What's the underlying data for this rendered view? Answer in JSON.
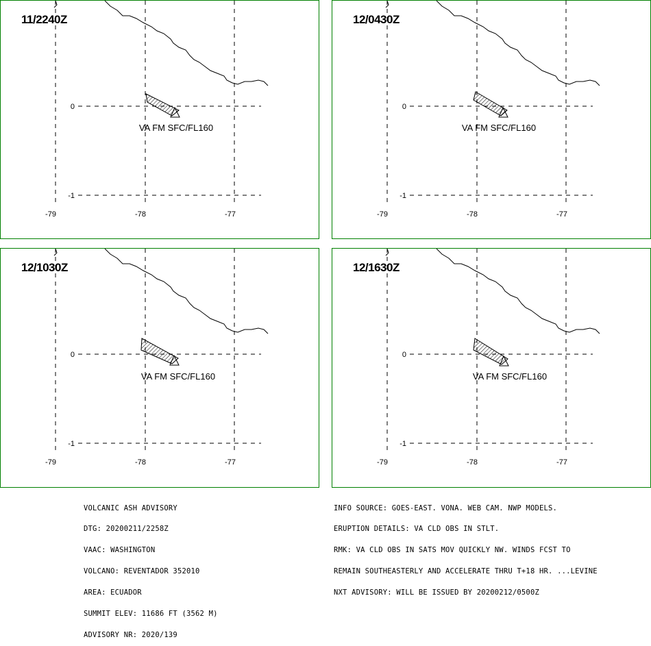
{
  "map": {
    "lat_labels": [
      "0",
      "-1"
    ],
    "lon_labels": [
      "-79",
      "-78",
      "-77"
    ],
    "cloud_label": "VA FM SFC/FL160",
    "colors": {
      "frame": "#008000",
      "lines": "#000000"
    }
  },
  "panels": [
    {
      "time": "11/2240Z"
    },
    {
      "time": "12/0430Z"
    },
    {
      "time": "12/1030Z"
    },
    {
      "time": "12/1630Z"
    }
  ],
  "advisory_left": [
    "VOLCANIC ASH ADVISORY",
    "DTG: 20200211/2258Z",
    "VAAC: WASHINGTON",
    "VOLCANO: REVENTADOR 352010",
    "AREA: ECUADOR",
    "SUMMIT ELEV: 11686 FT (3562 M)",
    "ADVISORY NR: 2020/139"
  ],
  "advisory_right": [
    "INFO SOURCE: GOES-EAST. VONA. WEB CAM. NWP MODELS.",
    "ERUPTION DETAILS: VA CLD OBS IN STLT.",
    "RMK: VA CLD OBS IN SATS MOV QUICKLY NW. WINDS FCST TO",
    "REMAIN SOUTHEASTERLY AND ACCELERATE THRU T+18 HR. ...LEVINE",
    "NXT ADVISORY: WILL BE ISSUED BY 20200212/0500Z"
  ]
}
